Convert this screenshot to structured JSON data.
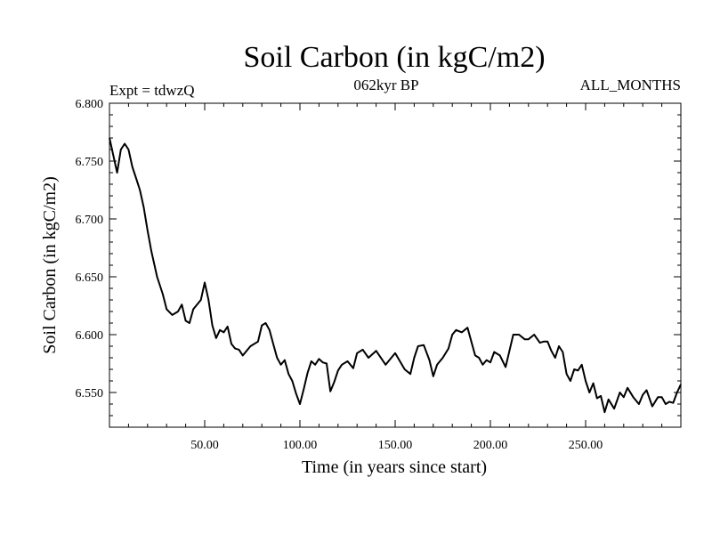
{
  "chart_data": {
    "type": "line",
    "title": "Soil Carbon (in kgC/m2)",
    "subtitle": "062kyr BP",
    "left_note": "Expt = tdwzQ",
    "right_note": "ALL_MONTHS",
    "xlabel": "Time (in years since start)",
    "ylabel": "Soil Carbon (in kgC/m2)",
    "xlim": [
      0,
      300
    ],
    "ylim": [
      6.52,
      6.8
    ],
    "x_ticks": [
      50,
      100,
      150,
      200,
      250
    ],
    "x_tick_labels": [
      "50.00",
      "100.00",
      "150.00",
      "200.00",
      "250.00"
    ],
    "y_ticks": [
      6.55,
      6.6,
      6.65,
      6.7,
      6.75,
      6.8
    ],
    "y_tick_labels": [
      "6.550",
      "6.600",
      "6.650",
      "6.700",
      "6.750",
      "6.800"
    ],
    "grid": false,
    "line_color": "#000000",
    "series": [
      {
        "x": [
          0,
          2,
          4,
          6,
          8,
          10,
          12,
          14,
          16,
          18,
          20,
          22,
          25,
          28,
          30,
          33,
          36,
          38,
          40,
          42,
          44,
          46,
          48,
          50,
          52,
          54,
          56,
          58,
          60,
          62,
          64,
          66,
          68,
          70,
          74,
          78,
          80,
          82,
          84,
          86,
          88,
          90,
          92,
          94,
          96,
          98,
          100,
          102,
          104,
          106,
          108,
          110,
          112,
          114,
          116,
          118,
          120,
          122,
          125,
          128,
          130,
          133,
          136,
          140,
          145,
          150,
          155,
          158,
          160,
          162,
          165,
          168,
          170,
          172,
          175,
          178,
          180,
          182,
          185,
          188,
          190,
          192,
          194,
          196,
          198,
          200,
          202,
          205,
          208,
          210,
          212,
          215,
          218,
          220,
          223,
          226,
          228,
          230,
          232,
          234,
          236,
          238,
          240,
          242,
          244,
          246,
          248,
          250,
          252,
          254,
          256,
          258,
          260,
          262,
          265,
          268,
          270,
          272,
          275,
          278,
          280,
          282,
          285,
          288,
          290,
          292,
          294,
          296,
          298,
          300
        ],
        "y": [
          6.77,
          6.755,
          6.74,
          6.76,
          6.765,
          6.76,
          6.745,
          6.735,
          6.725,
          6.71,
          6.69,
          6.672,
          6.65,
          6.635,
          6.622,
          6.617,
          6.62,
          6.626,
          6.612,
          6.61,
          6.622,
          6.626,
          6.63,
          6.645,
          6.63,
          6.608,
          6.597,
          6.604,
          6.602,
          6.607,
          6.592,
          6.588,
          6.587,
          6.582,
          6.59,
          6.594,
          6.608,
          6.61,
          6.604,
          6.592,
          6.58,
          6.574,
          6.578,
          6.566,
          6.56,
          6.549,
          6.54,
          6.553,
          6.567,
          6.577,
          6.574,
          6.579,
          6.576,
          6.575,
          6.551,
          6.559,
          6.569,
          6.574,
          6.577,
          6.571,
          6.584,
          6.587,
          6.58,
          6.586,
          6.574,
          6.584,
          6.57,
          6.566,
          6.58,
          6.59,
          6.591,
          6.578,
          6.564,
          6.574,
          6.58,
          6.588,
          6.6,
          6.604,
          6.602,
          6.606,
          6.594,
          6.582,
          6.58,
          6.574,
          6.578,
          6.576,
          6.585,
          6.582,
          6.572,
          6.586,
          6.6,
          6.6,
          6.596,
          6.596,
          6.6,
          6.593,
          6.594,
          6.594,
          6.586,
          6.58,
          6.59,
          6.585,
          6.566,
          6.56,
          6.57,
          6.569,
          6.574,
          6.56,
          6.55,
          6.558,
          6.545,
          6.547,
          6.533,
          6.544,
          6.536,
          6.55,
          6.546,
          6.554,
          6.546,
          6.54,
          6.548,
          6.552,
          6.538,
          6.546,
          6.546,
          6.54,
          6.542,
          6.541,
          6.55,
          6.557
        ]
      }
    ]
  }
}
